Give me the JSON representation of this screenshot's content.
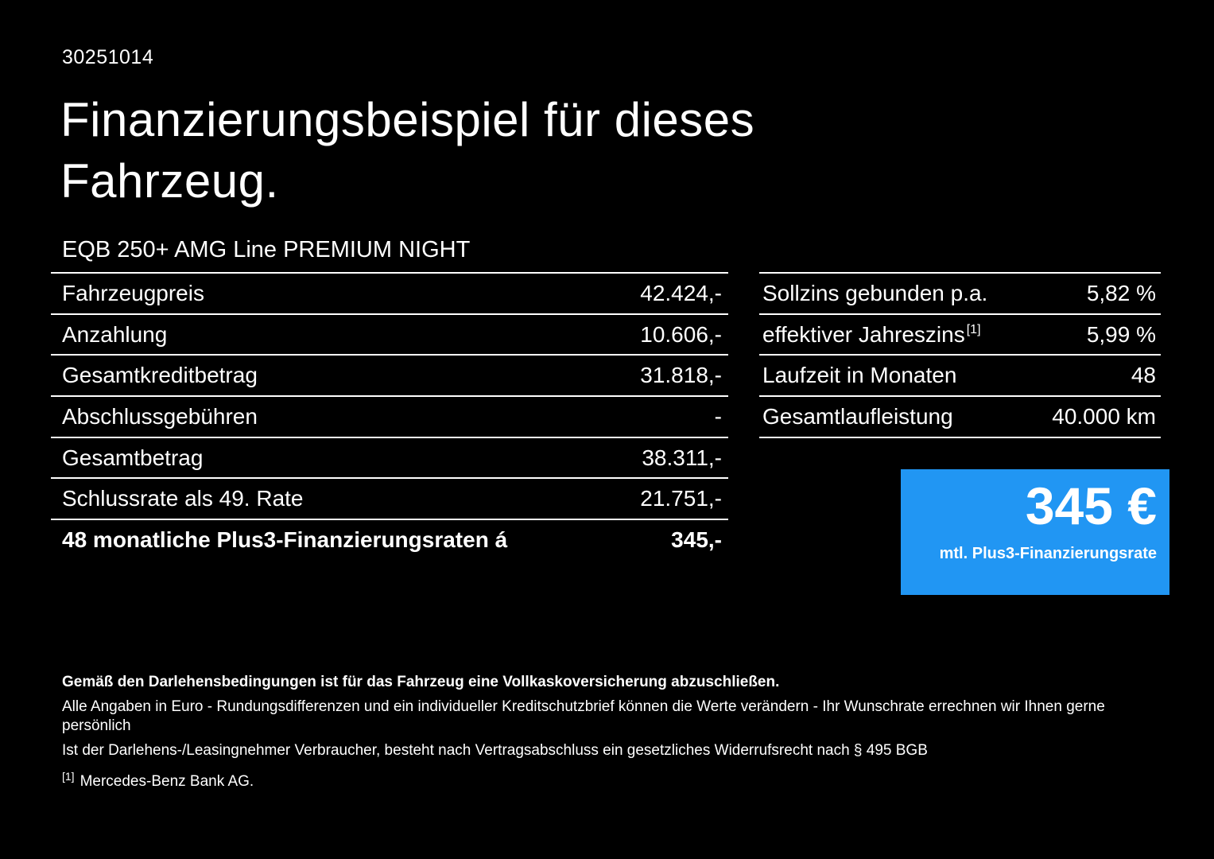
{
  "document": {
    "doc_number": "30251014",
    "title_line1": "Finanzierungsbeispiel für dieses",
    "title_line2": "Fahrzeug.",
    "vehicle_name": "EQB 250+ AMG Line PREMIUM NIGHT"
  },
  "left_table": {
    "rows": [
      {
        "label": "Fahrzeugpreis",
        "value": "42.424,-"
      },
      {
        "label": "Anzahlung",
        "value": "10.606,-"
      },
      {
        "label": "Gesamtkreditbetrag",
        "value": "31.818,-"
      },
      {
        "label": "Abschlussgebühren",
        "value": "-"
      },
      {
        "label": "Gesamtbetrag",
        "value": "38.311,-"
      },
      {
        "label": "Schlussrate als 49. Rate",
        "value": "21.751,-"
      },
      {
        "label": "48 monatliche Plus3-Finanzierungsraten á",
        "value": "345,-"
      }
    ]
  },
  "right_table": {
    "rows": [
      {
        "label": "Sollzins gebunden p.a.",
        "value": "5,82 %"
      },
      {
        "label": "effektiver Jahreszins",
        "superscript": "[1]",
        "value": "5,99 %"
      },
      {
        "label": "Laufzeit in Monaten",
        "value": "48"
      },
      {
        "label": "Gesamtlaufleistung",
        "value": "40.000 km"
      }
    ]
  },
  "rate_box": {
    "amount": "345 €",
    "caption": "mtl. Plus3-Finanzierungsrate",
    "background": "#2196f3"
  },
  "footer": {
    "bold_note": "Gemäß den Darlehensbedingungen ist für das Fahrzeug eine Vollkaskoversicherung abzuschließen.",
    "note1": "Alle Angaben in Euro - Rundungsdifferenzen und ein individueller Kreditschutzbrief können die Werte verändern - Ihr Wunschrate errechnen wir Ihnen gerne persönlich",
    "note2": "Ist der Darlehens-/Leasingnehmer Verbraucher, besteht nach Vertragsabschluss ein gesetzliches Widerrufsrecht nach § 495 BGB",
    "footnote_marker": "[1]",
    "footnote_text": "Mercedes-Benz Bank AG."
  }
}
